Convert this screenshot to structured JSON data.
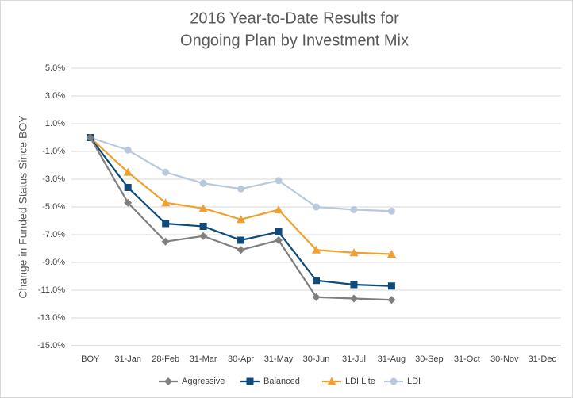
{
  "chart_data": {
    "type": "line",
    "title": [
      "2016 Year-to-Date Results for",
      "Ongoing Plan by Investment Mix"
    ],
    "y_label": "Change in Funded Status Since BOY",
    "categories": [
      "BOY",
      "31-Jan",
      "28-Feb",
      "31-Mar",
      "30-Apr",
      "31-May",
      "30-Jun",
      "31-Jul",
      "31-Aug",
      "30-Sep",
      "31-Oct",
      "30-Nov",
      "31-Dec"
    ],
    "series": [
      {
        "name": "Aggressive",
        "color": "#7f7f7f",
        "marker": "diamond",
        "values": [
          0,
          -4.7,
          -7.5,
          -7.1,
          -8.1,
          -7.4,
          -11.5,
          -11.6,
          -11.7,
          null,
          null,
          null,
          null
        ]
      },
      {
        "name": "Balanced",
        "color": "#0e4a7b",
        "marker": "square",
        "values": [
          0,
          -3.6,
          -6.2,
          -6.4,
          -7.4,
          -6.8,
          -10.3,
          -10.6,
          -10.7,
          null,
          null,
          null,
          null
        ]
      },
      {
        "name": "LDI Lite",
        "color": "#f0a030",
        "marker": "triangle",
        "values": [
          0,
          -2.5,
          -4.7,
          -5.1,
          -5.9,
          -5.2,
          -8.1,
          -8.3,
          -8.4,
          null,
          null,
          null,
          null
        ]
      },
      {
        "name": "LDI",
        "color": "#b9c9dd",
        "marker": "circle",
        "values": [
          0,
          -0.9,
          -2.5,
          -3.3,
          -3.7,
          -3.1,
          -5.0,
          -5.2,
          -5.3,
          null,
          null,
          null,
          null
        ]
      }
    ],
    "ylim": [
      -15,
      5
    ],
    "yticks": [
      {
        "value": 5,
        "label": "5.0%"
      },
      {
        "value": 3,
        "label": "3.0%"
      },
      {
        "value": 1,
        "label": "1.0%"
      },
      {
        "value": -1,
        "label": "-1.0%"
      },
      {
        "value": -3,
        "label": "-3.0%"
      },
      {
        "value": -5,
        "label": "-5.0%"
      },
      {
        "value": -7,
        "label": "-7.0%"
      },
      {
        "value": -9,
        "label": "-9.0%"
      },
      {
        "value": -11,
        "label": "-11.0%"
      },
      {
        "value": -13,
        "label": "-13.0%"
      },
      {
        "value": -15,
        "label": "-15.0%"
      }
    ],
    "grid": true,
    "legend": "bottom"
  }
}
